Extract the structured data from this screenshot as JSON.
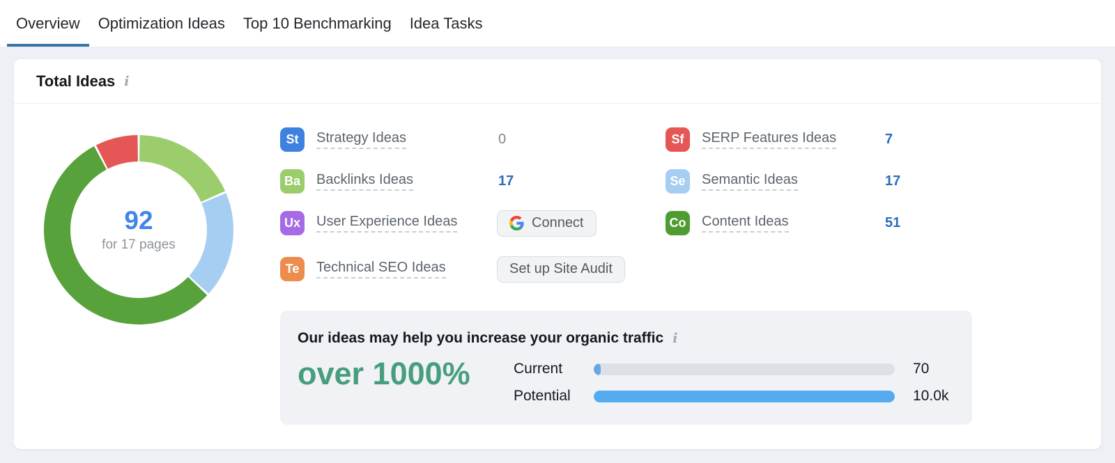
{
  "tabs": {
    "items": [
      {
        "label": "Overview"
      },
      {
        "label": "Optimization Ideas"
      },
      {
        "label": "Top 10 Benchmarking"
      },
      {
        "label": "Idea Tasks"
      }
    ],
    "active_index": 0,
    "active_underline_color": "#3b74ab"
  },
  "card": {
    "title": "Total Ideas",
    "info_icon": "i"
  },
  "chart_data": {
    "type": "pie",
    "title": "Total Ideas by category (donut)",
    "total": 92,
    "center_value": "92",
    "center_caption": "for 17 pages",
    "start_angle_deg": 0,
    "direction": "clockwise",
    "segments": [
      {
        "label": "Backlinks Ideas",
        "value": 17,
        "color": "#9bcd6d"
      },
      {
        "label": "Semantic Ideas",
        "value": 17,
        "color": "#a6cdf2"
      },
      {
        "label": "Content Ideas",
        "value": 51,
        "color": "#57a23a"
      },
      {
        "label": "SERP Features Ideas",
        "value": 7,
        "color": "#e45756"
      }
    ]
  },
  "ideas": {
    "left": [
      {
        "badge": "St",
        "badge_color": "#3d82e0",
        "label": "Strategy Ideas",
        "value": "0"
      },
      {
        "badge": "Ba",
        "badge_color": "#9bcd6d",
        "label": "Backlinks Ideas",
        "value": "17"
      },
      {
        "badge": "Ux",
        "badge_color": "#a56ae6",
        "label": "User Experience Ideas",
        "button": "Connect"
      },
      {
        "badge": "Te",
        "badge_color": "#ec8c4d",
        "label": "Technical SEO Ideas",
        "button": "Set up Site Audit"
      }
    ],
    "right": [
      {
        "badge": "Sf",
        "badge_color": "#e45756",
        "label": "SERP Features Ideas",
        "value": "7"
      },
      {
        "badge": "Se",
        "badge_color": "#a6cdf2",
        "label": "Semantic Ideas",
        "value": "17"
      },
      {
        "badge": "Co",
        "badge_color": "#4f9c33",
        "label": "Content Ideas",
        "value": "51"
      }
    ]
  },
  "promo": {
    "heading": "Our ideas may help you increase your organic traffic",
    "info_icon": "i",
    "highlight": "over 1000%",
    "highlight_color": "#479e7e",
    "bars": [
      {
        "label": "Current",
        "value": "70",
        "fill_pct": 2.3,
        "fill_color": "#64a9e3",
        "track_color": "#dde1e6"
      },
      {
        "label": "Potential",
        "value": "10.0k",
        "fill_pct": 100,
        "fill_color": "#55abf0",
        "track_color": "#dde1e6"
      }
    ]
  }
}
